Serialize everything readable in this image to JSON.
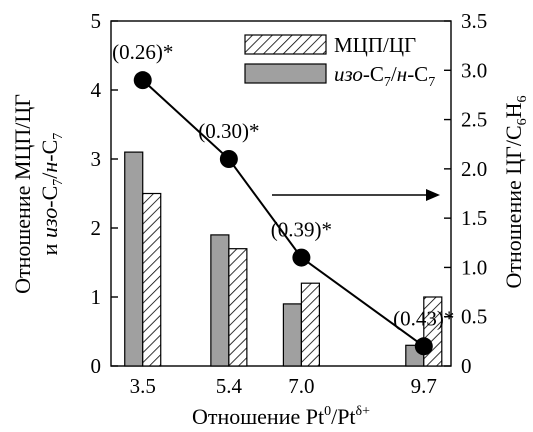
{
  "chart_data": {
    "type": "bar+line",
    "categories": [
      "3.5",
      "5.4",
      "7.0",
      "9.7"
    ],
    "x_values": [
      3.5,
      5.4,
      7.0,
      9.7
    ],
    "xlabel": {
      "text": "Отношение Pt",
      "sup1": "0",
      "mid": "/Pt",
      "sup2": "δ+"
    },
    "ylabel_left": {
      "line1": "Отношение МЦП/ЦГ",
      "line2_pre": "и ",
      "line2_italic1": "изо",
      "line2_mid": "-C",
      "line2_sub1": "7",
      "line2_slash": "/",
      "line2_italic2": "н",
      "line2_tail": "-C",
      "line2_sub2": "7"
    },
    "ylabel_right": {
      "pre": "Отношение ЦГ/C",
      "sub1": "6",
      "mid": "H",
      "sub2": "6"
    },
    "ylim_left": [
      0,
      5
    ],
    "yticks_left": [
      "0",
      "1",
      "2",
      "3",
      "4",
      "5"
    ],
    "ylim_right": [
      0,
      3.5
    ],
    "yticks_right": [
      "0",
      "0.5",
      "1.0",
      "1.5",
      "2.0",
      "2.5",
      "3.0",
      "3.5"
    ],
    "series": [
      {
        "name": "МЦП/ЦГ",
        "kind": "bar",
        "pattern": "hatched",
        "axis": "left",
        "values": [
          2.5,
          1.7,
          1.2,
          1.0
        ]
      },
      {
        "name_italic1": "изо",
        "name_mid": "-C",
        "name_sub1": "7",
        "name_slash": "/",
        "name_italic2": "н",
        "name_tail": "-C",
        "name_sub2": "7",
        "kind": "bar",
        "pattern": "solid",
        "color": "#a0a0a0",
        "axis": "left",
        "values": [
          3.1,
          1.9,
          0.9,
          0.3
        ]
      },
      {
        "kind": "line",
        "axis": "right",
        "marker": "circle",
        "color": "#000000",
        "values": [
          2.9,
          2.1,
          1.1,
          0.2
        ],
        "annotations": [
          "(0.26)*",
          "(0.30)*",
          "(0.39)*",
          "(0.43)*"
        ]
      }
    ],
    "legend_position": "top-right",
    "arrow_direction": "right"
  }
}
